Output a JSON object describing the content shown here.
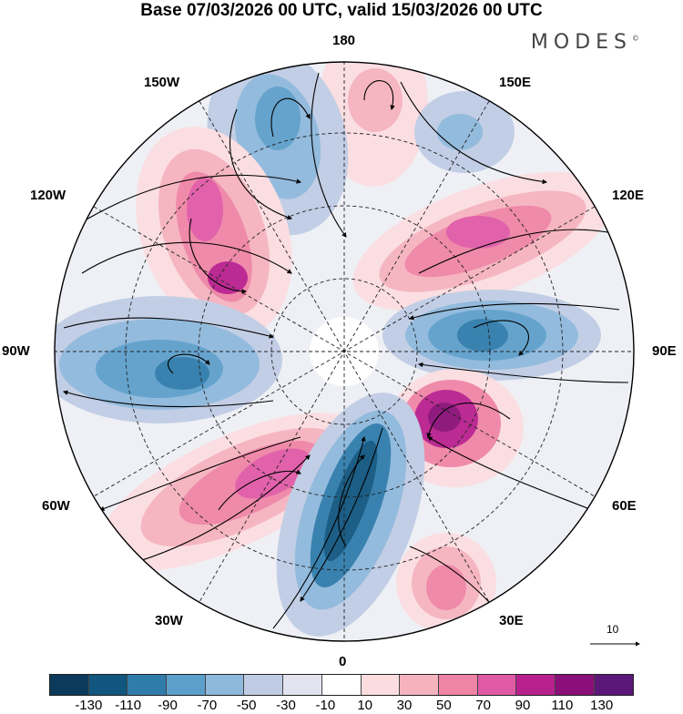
{
  "title": "Base 07/03/2026 00 UTC, valid 15/03/2026 00 UTC",
  "brand": "MODES",
  "brand_mark": "©",
  "longitude_labels": {
    "top": "180",
    "top_right": "150E",
    "upper_right": "120E",
    "right": "90E",
    "lower_right": "60E",
    "bottom_right": "30E",
    "bottom": "0",
    "bottom_left": "30W",
    "lower_left": "60W",
    "left": "90W",
    "upper_left": "120W",
    "top_left": "150W"
  },
  "vector_scale": {
    "label": "10"
  },
  "colorbar": {
    "colors": [
      "#0b3a5a",
      "#10567f",
      "#2f7cab",
      "#5d9fcb",
      "#8eb8dc",
      "#bfcce4",
      "#e3e3f0",
      "#ffffff",
      "#fbdde0",
      "#f5b3be",
      "#ef84a6",
      "#e05aa6",
      "#b8208e",
      "#8a0f78",
      "#5c1878"
    ],
    "ticks": [
      "-130",
      "-110",
      "-90",
      "-70",
      "-50",
      "-30",
      "-10",
      "10",
      "30",
      "50",
      "70",
      "90",
      "110",
      "130"
    ]
  },
  "anomaly_colors": {
    "strong_positive": "#8a0f78",
    "positive": "#e05aa6",
    "weak_positive": "#fbdde0",
    "weak_negative": "#bfcce4",
    "negative": "#5d9fcb",
    "strong_negative": "#10567f"
  }
}
